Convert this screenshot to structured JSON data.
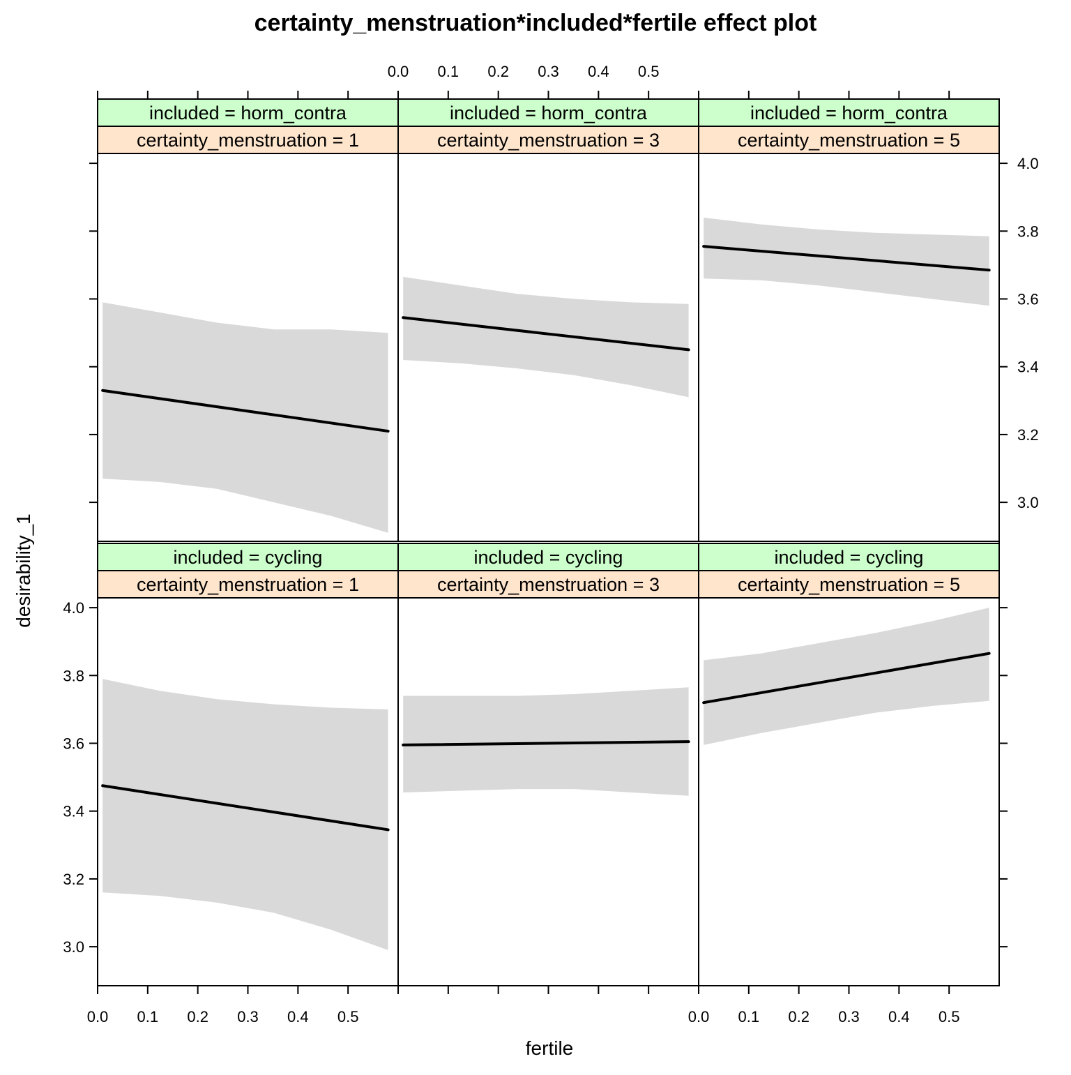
{
  "chart_data": {
    "type": "line",
    "title": "certainty_menstruation*included*fertile effect plot",
    "xlabel": "fertile",
    "ylabel": "desirability_1",
    "xlim": [
      0,
      0.6
    ],
    "ylim": [
      2.885,
      4.029
    ],
    "x_ticks": [
      0.0,
      0.1,
      0.2,
      0.3,
      0.4,
      0.5
    ],
    "x_tick_labels": [
      "0.0",
      "0.1",
      "0.2",
      "0.3",
      "0.4",
      "0.5"
    ],
    "y_ticks": [
      3.0,
      3.2,
      3.4,
      3.6,
      3.8,
      4.0
    ],
    "y_tick_labels": [
      "3.0",
      "3.2",
      "3.4",
      "3.6",
      "3.8",
      "4.0"
    ],
    "grid": false,
    "line_color": "#000000",
    "band_color": "#d9d9d9",
    "strip_color_top": "#ccffcc",
    "strip_color_bottom": "#ffe5cc",
    "panels": [
      {
        "row": 0,
        "col": 0,
        "strip_included": "included = horm_contra",
        "strip_certainty": "certainty_menstruation = 1",
        "x": [
          0.01,
          0.58
        ],
        "fit": [
          3.33,
          3.21
        ],
        "ci_upper": [
          3.59,
          3.56,
          3.53,
          3.51,
          3.51,
          3.5
        ],
        "ci_lower": [
          3.07,
          3.06,
          3.04,
          3.0,
          2.96,
          2.91
        ]
      },
      {
        "row": 0,
        "col": 1,
        "strip_included": "included = horm_contra",
        "strip_certainty": "certainty_menstruation = 3",
        "x": [
          0.01,
          0.58
        ],
        "fit": [
          3.545,
          3.45
        ],
        "ci_upper": [
          3.665,
          3.64,
          3.615,
          3.6,
          3.59,
          3.585
        ],
        "ci_lower": [
          3.42,
          3.41,
          3.395,
          3.375,
          3.345,
          3.31
        ]
      },
      {
        "row": 0,
        "col": 2,
        "strip_included": "included = horm_contra",
        "strip_certainty": "certainty_menstruation = 5",
        "x": [
          0.01,
          0.58
        ],
        "fit": [
          3.755,
          3.685
        ],
        "ci_upper": [
          3.84,
          3.82,
          3.805,
          3.795,
          3.79,
          3.785
        ],
        "ci_lower": [
          3.66,
          3.655,
          3.64,
          3.62,
          3.6,
          3.58
        ]
      },
      {
        "row": 1,
        "col": 0,
        "strip_included": "included = cycling",
        "strip_certainty": "certainty_menstruation = 1",
        "x": [
          0.01,
          0.58
        ],
        "fit": [
          3.475,
          3.345
        ],
        "ci_upper": [
          3.79,
          3.755,
          3.73,
          3.715,
          3.705,
          3.7
        ],
        "ci_lower": [
          3.16,
          3.15,
          3.13,
          3.1,
          3.05,
          2.99
        ]
      },
      {
        "row": 1,
        "col": 1,
        "strip_included": "included = cycling",
        "strip_certainty": "certainty_menstruation = 3",
        "x": [
          0.01,
          0.58
        ],
        "fit": [
          3.595,
          3.605
        ],
        "ci_upper": [
          3.74,
          3.74,
          3.74,
          3.745,
          3.755,
          3.765
        ],
        "ci_lower": [
          3.455,
          3.46,
          3.465,
          3.465,
          3.455,
          3.445
        ]
      },
      {
        "row": 1,
        "col": 2,
        "strip_included": "included = cycling",
        "strip_certainty": "certainty_menstruation = 5",
        "x": [
          0.01,
          0.58
        ],
        "fit": [
          3.72,
          3.865
        ],
        "ci_upper": [
          3.845,
          3.865,
          3.895,
          3.925,
          3.96,
          4.0
        ],
        "ci_lower": [
          3.595,
          3.63,
          3.66,
          3.69,
          3.71,
          3.725
        ]
      }
    ]
  }
}
